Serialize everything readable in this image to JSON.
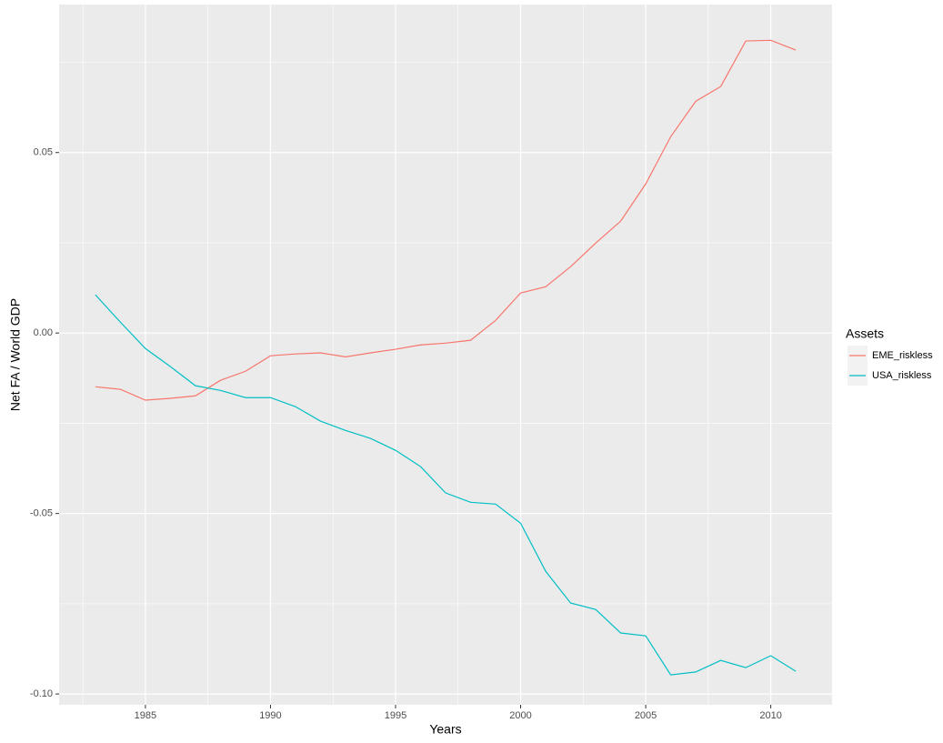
{
  "chart_data": {
    "type": "line",
    "x_label": "Years",
    "y_label": "Net FA / World GDP",
    "legend_title": "Assets",
    "legend_position": "right",
    "grid": true,
    "x": [
      1983,
      1984,
      1985,
      1986,
      1987,
      1988,
      1989,
      1990,
      1991,
      1992,
      1993,
      1994,
      1995,
      1996,
      1997,
      1998,
      1999,
      2000,
      2001,
      2002,
      2003,
      2004,
      2005,
      2006,
      2007,
      2008,
      2009,
      2010,
      2011
    ],
    "series": [
      {
        "name": "EME_riskless",
        "color": "#F8766D",
        "values": [
          -0.0149,
          -0.0156,
          -0.0186,
          -0.0181,
          -0.0174,
          -0.0131,
          -0.0106,
          -0.0063,
          -0.0058,
          -0.0055,
          -0.0066,
          -0.0055,
          -0.0045,
          -0.0033,
          -0.0028,
          -0.002,
          0.0035,
          0.0111,
          0.0128,
          0.0184,
          0.0249,
          0.031,
          0.0413,
          0.0544,
          0.0642,
          0.0683,
          0.0809,
          0.0811,
          0.0784
        ]
      },
      {
        "name": "USA_riskless",
        "color": "#00BFC4",
        "values": [
          0.0106,
          0.003,
          -0.0043,
          -0.0093,
          -0.0146,
          -0.0159,
          -0.0179,
          -0.0179,
          -0.0204,
          -0.0244,
          -0.027,
          -0.0292,
          -0.0325,
          -0.037,
          -0.0443,
          -0.0469,
          -0.0474,
          -0.0527,
          -0.066,
          -0.0748,
          -0.0766,
          -0.0831,
          -0.0839,
          -0.0947,
          -0.0939,
          -0.0907,
          -0.0927,
          -0.0894,
          -0.0937
        ]
      }
    ],
    "xlim": [
      1981.55,
      2012.45
    ],
    "xticks": [
      1985,
      1990,
      1995,
      2000,
      2005,
      2010
    ],
    "ylim": [
      -0.103,
      0.091
    ],
    "yticks": [
      0.05,
      {
        "value": 0,
        "label": "0.00"
      },
      -0.05,
      {
        "value": -0.1,
        "label": "-0.10"
      }
    ]
  }
}
